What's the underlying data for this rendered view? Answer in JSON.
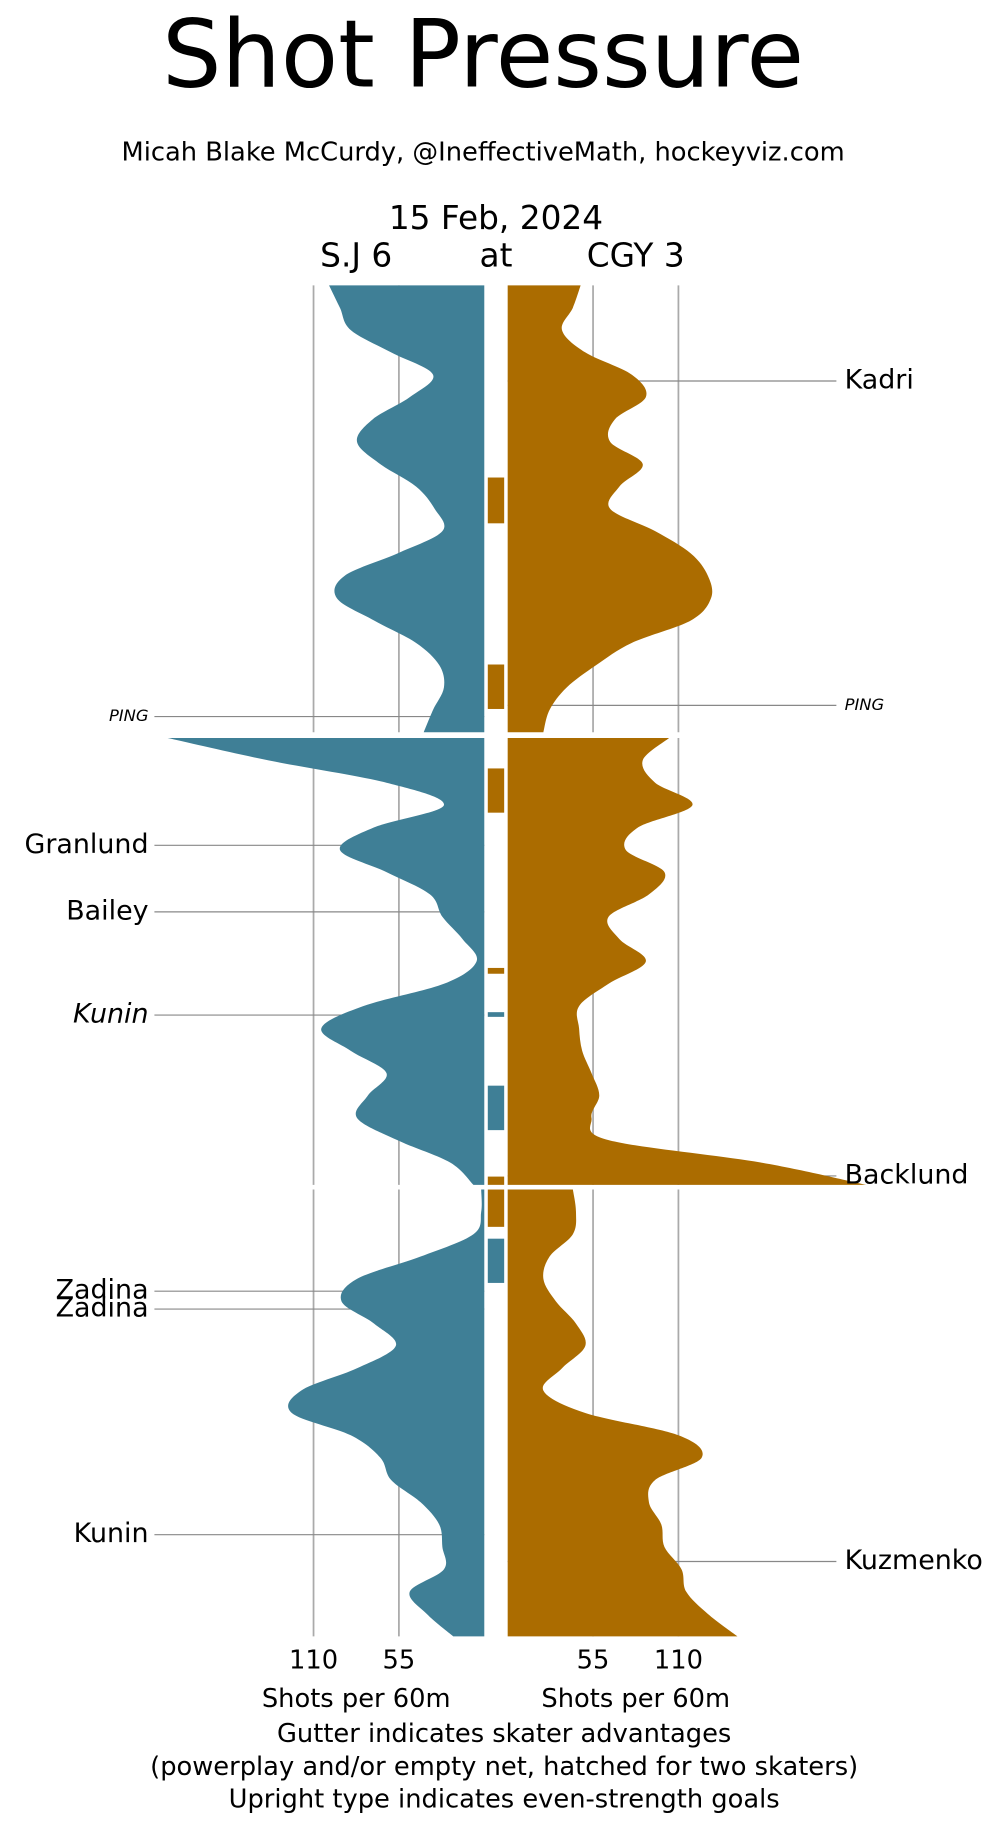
{
  "chart_data": {
    "type": "shot-pressure",
    "title": "Shot Pressure",
    "subtitle": "Micah Blake McCurdy, @IneffectiveMath, hockeyviz.com",
    "date": "15 Feb, 2024",
    "connector": "at",
    "xlabel": "Shots per 60m",
    "notes": [
      "Gutter indicates skater advantages",
      "(powerplay and/or empty net, hatched for two skaters)",
      "Upright type indicates even-strength goals"
    ],
    "xlim": [
      0,
      240
    ],
    "xticks": [
      55,
      110
    ],
    "grid": true,
    "x": [
      0,
      1,
      2,
      3,
      4,
      5,
      6,
      7,
      8,
      9,
      10,
      11,
      12,
      13,
      14,
      15,
      16,
      17,
      18,
      19,
      20
    ],
    "series": [
      {
        "name": "S.J 6",
        "side": "left",
        "color": "#3f7f96",
        "values": [
          [
            100,
            93,
            86,
            60,
            33,
            48,
            72,
            82,
            67,
            44,
            32,
            27,
            56,
            90,
            95,
            71,
            44,
            29,
            26,
            33,
            39
          ],
          [
            204,
            139,
            63,
            26,
            71,
            93,
            63,
            35,
            27,
            14,
            5,
            26,
            78,
            105,
            86,
            63,
            75,
            82,
            56,
            22,
            7
          ],
          [
            2,
            2,
            7,
            41,
            82,
            92,
            71,
            57,
            82,
            118,
            124,
            86,
            67,
            60,
            41,
            29,
            27,
            26,
            48,
            37,
            20
          ]
        ]
      },
      {
        "name": "CGY 3",
        "side": "right",
        "color": "#ab6c00",
        "values": [
          [
            47,
            42,
            35,
            50,
            80,
            89,
            69,
            66,
            87,
            72,
            66,
            95,
            118,
            129,
            131,
            118,
            80,
            57,
            38,
            27,
            23
          ],
          [
            104,
            87,
            95,
            119,
            84,
            76,
            101,
            91,
            65,
            72,
            89,
            65,
            46,
            46,
            48,
            54,
            59,
            54,
            65,
            163,
            231
          ],
          [
            42,
            44,
            42,
            27,
            23,
            31,
            44,
            50,
            35,
            23,
            50,
            110,
            125,
            95,
            91,
            99,
            101,
            112,
            115,
            129,
            148
          ]
        ]
      }
    ],
    "advantages": [
      {
        "series": 1,
        "period": 0,
        "start": 8.6,
        "end": 10.65
      },
      {
        "series": 1,
        "period": 0,
        "start": 16.97,
        "end": 18.96
      },
      {
        "series": 1,
        "period": 1,
        "start": 1.36,
        "end": 3.34
      },
      {
        "series": 1,
        "period": 1,
        "start": 10.29,
        "end": 10.55
      },
      {
        "series": 0,
        "period": 1,
        "start": 12.27,
        "end": 12.48
      },
      {
        "series": 0,
        "period": 1,
        "start": 15.56,
        "end": 17.55
      },
      {
        "series": 1,
        "period": 1,
        "start": 19.63,
        "end": 20
      },
      {
        "series": 1,
        "period": 2,
        "start": 0,
        "end": 1.67
      },
      {
        "series": 0,
        "period": 2,
        "start": 2.2,
        "end": 4.18
      }
    ],
    "goals": [
      {
        "label": "Kadri",
        "series": 1,
        "period": 0,
        "time": 4.28,
        "italic": false
      },
      {
        "label": "PING",
        "series": 0,
        "period": 0,
        "time": 19.3,
        "italic": true,
        "small": true
      },
      {
        "label": "PING",
        "series": 1,
        "period": 0,
        "time": 18.8,
        "italic": true,
        "small": true
      },
      {
        "label": "Granlund",
        "series": 0,
        "period": 1,
        "time": 4.8,
        "italic": false
      },
      {
        "label": "Bailey",
        "series": 0,
        "period": 1,
        "time": 7.78,
        "italic": false
      },
      {
        "label": "Kunin",
        "series": 0,
        "period": 1,
        "time": 12.4,
        "italic": true
      },
      {
        "label": "Backlund",
        "series": 1,
        "period": 1,
        "time": 19.6,
        "italic": false
      },
      {
        "label": "Zadina",
        "series": 0,
        "period": 2,
        "time": 4.55,
        "italic": false
      },
      {
        "label": "Zadina",
        "series": 0,
        "period": 2,
        "time": 5.35,
        "italic": false
      },
      {
        "label": "Kunin",
        "series": 0,
        "period": 2,
        "time": 15.45,
        "italic": false
      },
      {
        "label": "Kuzmenko",
        "series": 1,
        "period": 2,
        "time": 16.65,
        "italic": false
      }
    ]
  }
}
